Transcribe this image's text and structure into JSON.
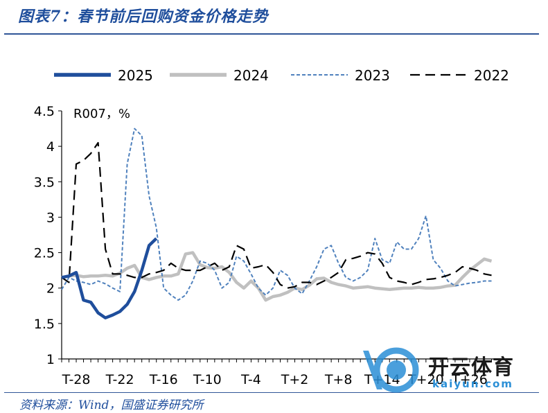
{
  "figure": {
    "title": "图表7：春节前后回购资金价格走势",
    "source": "资料来源：Wind，国盛证券研究所"
  },
  "watermark": {
    "name": "开云体育",
    "domain": "kaiyun.com"
  },
  "chart_data": {
    "type": "line",
    "unit_label": "R007，%",
    "ylim": [
      1,
      4.5
    ],
    "yticks": [
      "1",
      "1.5",
      "2",
      "2.5",
      "3",
      "3.5",
      "4",
      "4.5"
    ],
    "xlim": [
      -30,
      30
    ],
    "xticks": [
      -28,
      -22,
      -16,
      -10,
      -4,
      2,
      8,
      14,
      20,
      26
    ],
    "xtick_labels": [
      "T-28",
      "T-22",
      "T-16",
      "T-10",
      "T-4",
      "T+2",
      "T+8",
      "T+14",
      "T+20",
      "T+26"
    ],
    "legend_position": "top",
    "series": [
      {
        "name": "2025",
        "color": "#1f4e9c",
        "style": "solid-thick",
        "x": [
          -30,
          -29,
          -28,
          -27,
          -26,
          -25,
          -24,
          -23,
          -22,
          -21,
          -20,
          -19,
          -18,
          -17,
          -16,
          -15,
          -14
        ],
        "y": [
          2.15,
          2.17,
          2.22,
          1.83,
          1.8,
          1.65,
          1.58,
          1.62,
          1.67,
          1.77,
          1.95,
          2.25,
          2.6,
          2.7,
          null,
          null,
          null
        ]
      },
      {
        "name": "2024",
        "color": "#c0c0c0",
        "style": "solid-thick",
        "x": [
          -30,
          -29,
          -28,
          -27,
          -26,
          -25,
          -24,
          -23,
          -22,
          -21,
          -20,
          -19,
          -18,
          -17,
          -16,
          -15,
          -14,
          -13,
          -12,
          -11,
          -10,
          -9,
          -8,
          -7,
          -6,
          -5,
          -4,
          -3,
          -2,
          -1,
          0,
          1,
          2,
          3,
          4,
          5,
          6,
          7,
          8,
          9,
          10,
          11,
          12,
          13,
          14,
          15,
          16,
          17,
          18,
          19,
          20,
          21,
          22,
          23,
          24,
          25,
          26,
          27,
          28,
          29
        ],
        "y": [
          2.15,
          2.17,
          2.18,
          2.16,
          2.17,
          2.17,
          2.18,
          2.17,
          2.21,
          2.28,
          2.32,
          2.15,
          2.12,
          2.15,
          2.17,
          2.17,
          2.2,
          2.48,
          2.5,
          2.33,
          2.29,
          2.28,
          2.3,
          2.22,
          2.08,
          2.0,
          2.1,
          2.0,
          1.83,
          1.88,
          1.9,
          1.94,
          2.0,
          1.98,
          2.04,
          2.13,
          2.14,
          2.08,
          2.05,
          2.03,
          2.0,
          2.01,
          2.02,
          2.0,
          1.99,
          1.98,
          1.99,
          2.0,
          2.0,
          2.01,
          2.0,
          2.0,
          2.01,
          2.03,
          2.04,
          2.15,
          2.25,
          2.33,
          2.41,
          2.38
        ]
      },
      {
        "name": "2023",
        "color": "#4f81bd",
        "style": "dashed-fine",
        "x": [
          -30,
          -29,
          -28,
          -27,
          -26,
          -25,
          -24,
          -23,
          -22,
          -21,
          -20,
          -19,
          -18,
          -17,
          -16,
          -15,
          -14,
          -13,
          -12,
          -11,
          -10,
          -9,
          -8,
          -7,
          -6,
          -5,
          -4,
          -3,
          -2,
          -1,
          0,
          1,
          2,
          3,
          4,
          5,
          6,
          7,
          8,
          9,
          10,
          11,
          12,
          13,
          14,
          15,
          16,
          17,
          18,
          19,
          20,
          21,
          22,
          23,
          24,
          25,
          26,
          27,
          28,
          29
        ],
        "y": [
          1.98,
          2.15,
          2.1,
          2.08,
          2.05,
          2.1,
          2.06,
          2.0,
          1.95,
          3.75,
          4.25,
          4.15,
          3.3,
          2.85,
          2.0,
          1.9,
          1.83,
          1.9,
          2.1,
          2.38,
          2.35,
          2.25,
          2.0,
          2.08,
          2.45,
          2.38,
          2.2,
          2.0,
          1.9,
          2.0,
          2.25,
          2.18,
          2.0,
          1.92,
          2.1,
          2.3,
          2.55,
          2.6,
          2.35,
          2.15,
          2.1,
          2.15,
          2.25,
          2.7,
          2.4,
          2.35,
          2.65,
          2.55,
          2.55,
          2.7,
          3.02,
          2.4,
          2.28,
          2.1,
          2.03,
          2.05,
          2.07,
          2.08,
          2.1,
          2.1
        ]
      },
      {
        "name": "2022",
        "color": "#000000",
        "style": "dashed-long",
        "x": [
          -30,
          -29,
          -28,
          -27,
          -26,
          -25,
          -24,
          -23,
          -22,
          -21,
          -20,
          -19,
          -18,
          -17,
          -16,
          -15,
          -14,
          -13,
          -12,
          -11,
          -10,
          -9,
          -8,
          -7,
          -6,
          -5,
          -4,
          -3,
          -2,
          -1,
          0,
          1,
          2,
          3,
          4,
          5,
          6,
          7,
          8,
          9,
          10,
          11,
          12,
          13,
          14,
          15,
          16,
          17,
          18,
          19,
          20,
          21,
          22,
          23,
          24,
          25,
          26,
          27,
          28,
          29
        ],
        "y": [
          2.15,
          2.08,
          3.75,
          3.8,
          3.9,
          4.05,
          2.55,
          2.2,
          2.2,
          2.18,
          2.15,
          2.15,
          2.2,
          2.22,
          2.25,
          2.35,
          2.28,
          2.25,
          2.25,
          2.25,
          2.3,
          2.35,
          2.25,
          2.3,
          2.6,
          2.55,
          2.28,
          2.3,
          2.33,
          2.22,
          2.05,
          2.0,
          2.02,
          2.08,
          2.08,
          2.05,
          2.1,
          2.15,
          2.22,
          2.4,
          2.42,
          2.45,
          2.5,
          2.48,
          2.35,
          2.15,
          2.1,
          2.08,
          2.05,
          2.08,
          2.12,
          2.13,
          2.15,
          2.18,
          2.22,
          2.3,
          2.28,
          2.25,
          2.2,
          2.18
        ]
      }
    ]
  }
}
